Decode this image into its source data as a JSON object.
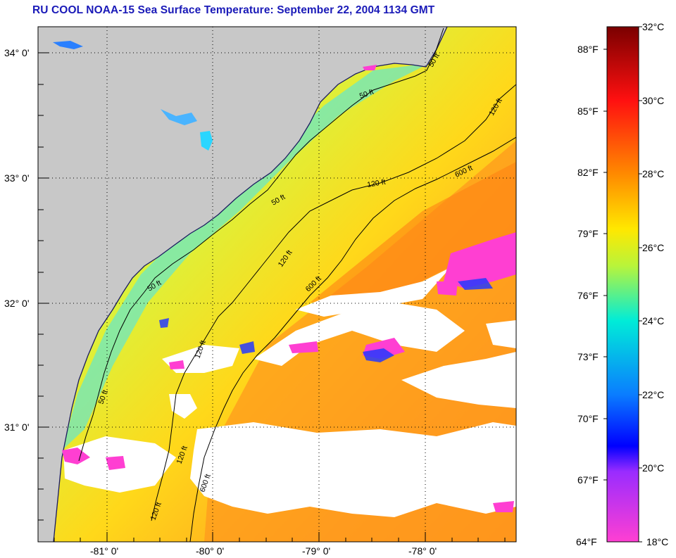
{
  "title": "RU COOL  NOAA-15  Sea Surface Temperature:  September 22, 2004 1134 GMT",
  "map": {
    "latitude_labels": [
      "34° 0'",
      "33° 0'",
      "32° 0'",
      "31° 0'"
    ],
    "longitude_labels": [
      "-81° 0'",
      "-80° 0'",
      "-79° 0'",
      "-78° 0'"
    ],
    "isobath_labels": [
      "50 ft",
      "120 ft",
      "600 ft"
    ],
    "colors": {
      "land": "#c8c8c8",
      "cloud": "#ffffff",
      "contour": "#000000"
    }
  },
  "colorbar": {
    "fahrenheit_labels": [
      "88°F",
      "85°F",
      "82°F",
      "79°F",
      "76°F",
      "73°F",
      "70°F",
      "67°F",
      "64°F"
    ],
    "celsius_labels": [
      "32°C",
      "30°C",
      "28°C",
      "26°C",
      "24°C",
      "22°C",
      "20°C",
      "18°C"
    ],
    "celsius_range": [
      18,
      32
    ],
    "gradient_stops": [
      {
        "c": 32,
        "color": "#7a0000"
      },
      {
        "c": 30,
        "color": "#ff1010"
      },
      {
        "c": 28,
        "color": "#ff8a00"
      },
      {
        "c": 26.5,
        "color": "#ffe800"
      },
      {
        "c": 25.5,
        "color": "#b9f43a"
      },
      {
        "c": 24,
        "color": "#00ecd8"
      },
      {
        "c": 22,
        "color": "#0a7dff"
      },
      {
        "c": 20.6,
        "color": "#0000ff"
      },
      {
        "c": 19.9,
        "color": "#9a2cff"
      },
      {
        "c": 18,
        "color": "#ff3fd2"
      }
    ]
  }
}
